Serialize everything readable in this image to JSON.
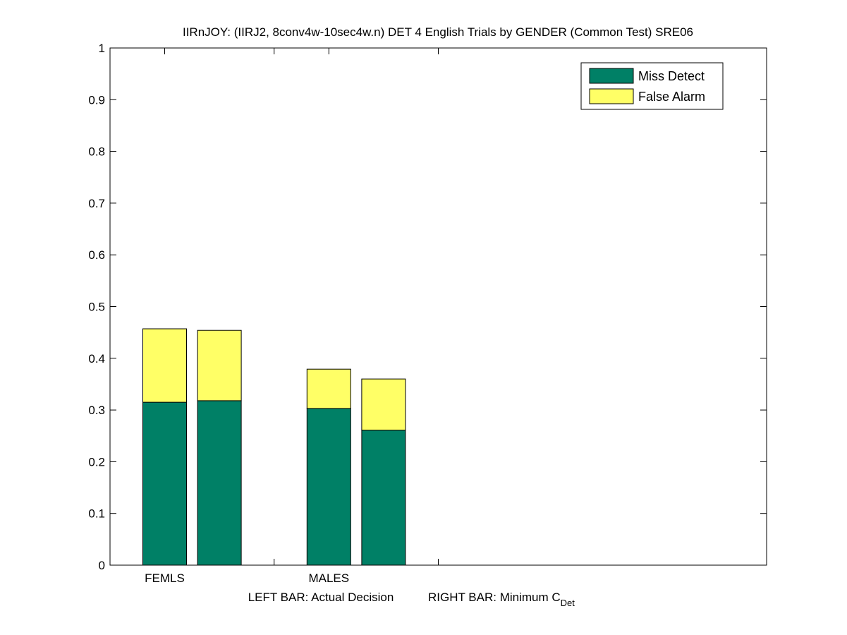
{
  "chart_data": {
    "type": "bar",
    "stacked": true,
    "title": "IIRnJOY: (IIRJ2, 8conv4w-10sec4w.n) DET 4 English Trials by GENDER (Common Test) SRE06",
    "xlabel_left": "LEFT BAR: Actual Decision",
    "xlabel_right_prefix": "RIGHT BAR: Minimum C",
    "xlabel_right_subscript": "Det",
    "ylim": [
      0,
      1
    ],
    "yticks": [
      "0",
      "0.1",
      "0.2",
      "0.3",
      "0.4",
      "0.5",
      "0.6",
      "0.7",
      "0.8",
      "0.9",
      "1"
    ],
    "grid": false,
    "legend_position": "top-right",
    "categories": [
      "FEMLS",
      "MALES"
    ],
    "bars_per_category": [
      "Actual Decision",
      "Minimum CDet"
    ],
    "series": [
      {
        "name": "Miss Detect",
        "color": "#008066",
        "values": [
          [
            0.315,
            0.318
          ],
          [
            0.303,
            0.261
          ]
        ]
      },
      {
        "name": "False Alarm",
        "color": "#ffff66",
        "values": [
          [
            0.142,
            0.136
          ],
          [
            0.076,
            0.099
          ]
        ]
      }
    ]
  }
}
